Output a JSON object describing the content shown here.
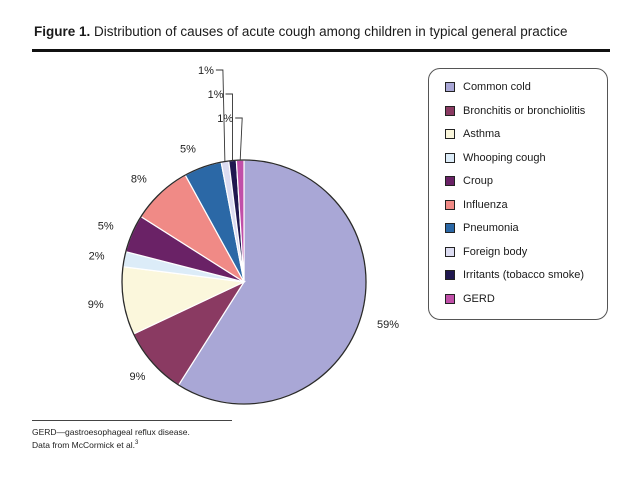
{
  "title": {
    "figure_label": "Figure 1.",
    "text": "Distribution of causes of acute cough among children in typical general practice"
  },
  "chart_data": {
    "type": "pie",
    "categories": [
      "Common cold",
      "Bronchitis or bronchiolitis",
      "Asthma",
      "Whooping cough",
      "Croup",
      "Influenza",
      "Pneumonia",
      "Foreign body",
      "Irritants (tobacco smoke)",
      "GERD"
    ],
    "values": [
      59,
      9,
      9,
      2,
      5,
      8,
      5,
      1,
      1,
      1
    ],
    "data_labels": [
      "59%",
      "9%",
      "9%",
      "2%",
      "5%",
      "8%",
      "5%",
      "1%",
      "1%",
      "1%"
    ],
    "colors": [
      "#a9a7d6",
      "#8a3a62",
      "#fbf7dc",
      "#dcecf8",
      "#6a2266",
      "#f08a86",
      "#2b68a6",
      "#dcdcf1",
      "#20184f",
      "#c04fa8"
    ],
    "legend_position": "right"
  },
  "footnote": {
    "line1": "GERD—gastroesophageal reflux disease.",
    "line2": "Data from McCormick et al.",
    "ref": "3"
  }
}
